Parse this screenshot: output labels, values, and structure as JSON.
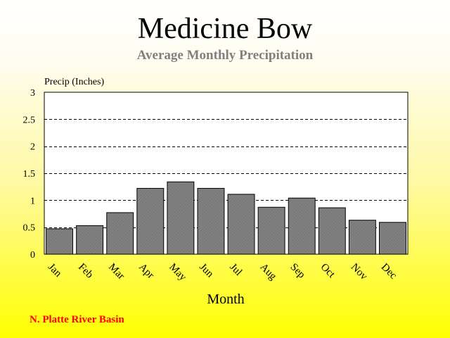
{
  "chart_data": {
    "type": "bar",
    "title": "Medicine Bow",
    "subtitle": "Average Monthly Precipitation",
    "ylabel": "Precip (Inches)",
    "xlabel": "Month",
    "ylim": [
      0,
      3
    ],
    "yticks": [
      "0",
      "0.5",
      "1",
      "1.5",
      "2",
      "2.5",
      "3"
    ],
    "categories": [
      "Jan",
      "Feb",
      "Mar",
      "Apr",
      "May",
      "Jun",
      "Jul",
      "Aug",
      "Sep",
      "Oct",
      "Nov",
      "Dec"
    ],
    "values": [
      0.47,
      0.53,
      0.77,
      1.22,
      1.34,
      1.22,
      1.11,
      0.87,
      1.04,
      0.86,
      0.63,
      0.59
    ],
    "grid": "horizontal dashed",
    "bar_color": "#808080"
  },
  "footnote": "N. Platte River Basin",
  "colors": {
    "title": "#000000",
    "subtitle": "#808080",
    "footnote": "#ff0000",
    "background_top": "#ffffff",
    "background_bottom": "#ffff00",
    "plot_background": "#ffffff"
  }
}
